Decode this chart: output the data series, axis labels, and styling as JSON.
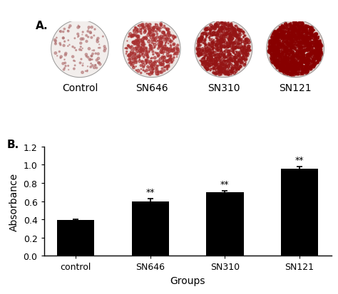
{
  "panel_a_label": "A.",
  "panel_b_label": "B.",
  "categories": [
    "control",
    "SN646",
    "SN310",
    "SN121"
  ],
  "labels_top": [
    "Control",
    "SN646",
    "SN310",
    "SN121"
  ],
  "values": [
    0.39,
    0.6,
    0.7,
    0.96
  ],
  "errors": [
    0.01,
    0.03,
    0.015,
    0.02
  ],
  "significance": [
    "",
    "**",
    "**",
    "**"
  ],
  "bar_color": "#000000",
  "ylabel": "Absorbance",
  "xlabel": "Groups",
  "ylim": [
    0,
    1.2
  ],
  "yticks": [
    0.0,
    0.2,
    0.4,
    0.6,
    0.8,
    1.0,
    1.2
  ],
  "bar_width": 0.5,
  "circle_configs": [
    {
      "base": "#f2eeec",
      "spot_color": "#b07070",
      "n_spots": 120,
      "spot_alpha": 0.55,
      "spot_rmin": 0.003,
      "spot_rmax": 0.018
    },
    {
      "base": "#ede5e2",
      "spot_color": "#a83030",
      "n_spots": 500,
      "spot_alpha": 0.6,
      "spot_rmin": 0.004,
      "spot_rmax": 0.022
    },
    {
      "base": "#e8dbd8",
      "spot_color": "#951515",
      "n_spots": 900,
      "spot_alpha": 0.65,
      "spot_rmin": 0.004,
      "spot_rmax": 0.022
    },
    {
      "base": "#e2d0cb",
      "spot_color": "#880000",
      "n_spots": 1400,
      "spot_alpha": 0.7,
      "spot_rmin": 0.004,
      "spot_rmax": 0.025
    }
  ],
  "background_color": "#ffffff",
  "font_color": "#000000",
  "label_fontsize": 11,
  "axis_fontsize": 10,
  "tick_fontsize": 9
}
